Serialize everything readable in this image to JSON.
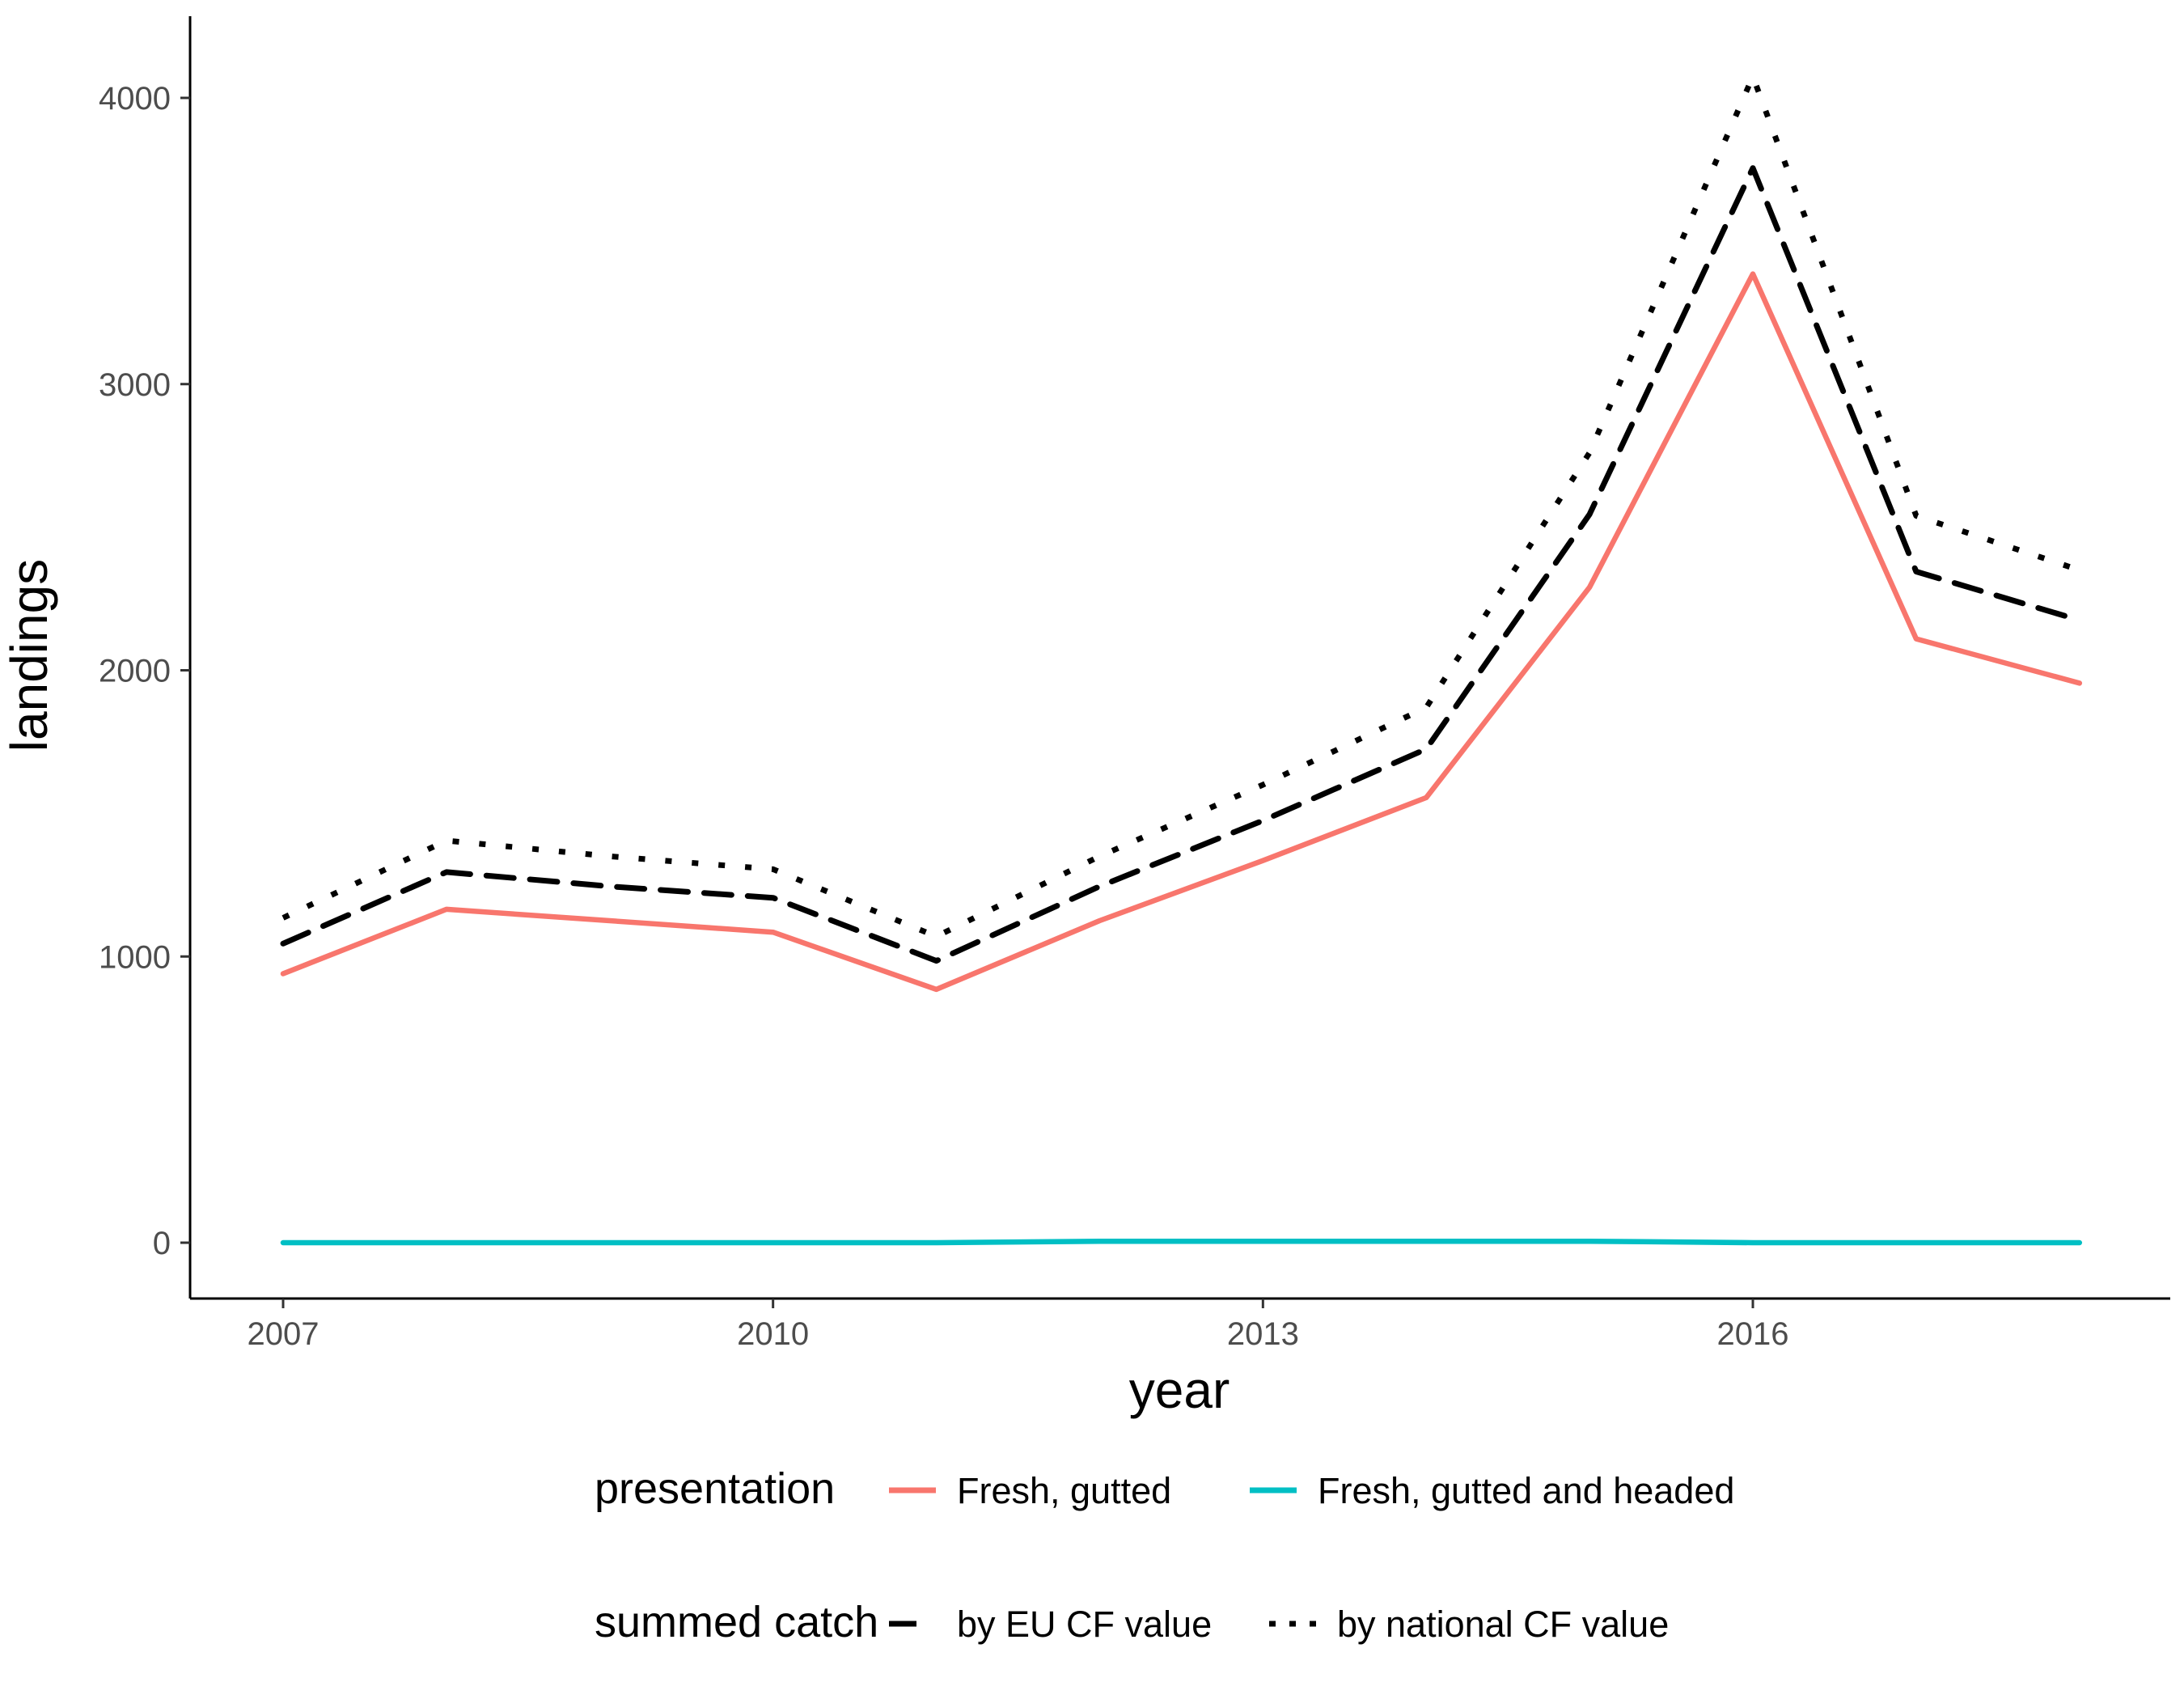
{
  "chart_data": {
    "type": "line",
    "xlabel": "year",
    "ylabel": "landings",
    "xlim": [
      2006.8,
      2018.3
    ],
    "ylim": [
      -200,
      4300
    ],
    "x_ticks": [
      2007,
      2010,
      2013,
      2016
    ],
    "y_ticks": [
      0,
      1000,
      2000,
      3000,
      4000
    ],
    "grid": false,
    "x": [
      2007,
      2008,
      2009,
      2010,
      2011,
      2012,
      2013,
      2014,
      2015,
      2016,
      2017,
      2018
    ],
    "series": [
      {
        "name": "Fresh, gutted",
        "group": "presentation",
        "color": "#F8766D",
        "style": "solid",
        "values": [
          940,
          1165,
          1125,
          1085,
          885,
          1125,
          1335,
          1555,
          2290,
          3385,
          2110,
          1955
        ]
      },
      {
        "name": "Fresh, gutted and headed",
        "group": "presentation",
        "color": "#00BFC4",
        "style": "solid",
        "values": [
          0,
          0,
          0,
          0,
          0,
          5,
          5,
          5,
          5,
          0,
          0,
          0
        ]
      },
      {
        "name": "by EU CF value",
        "group": "summed catch",
        "color": "#000000",
        "style": "dashed",
        "values": [
          1045,
          1295,
          1245,
          1205,
          985,
          1245,
          1475,
          1725,
          2545,
          3755,
          2345,
          2175
        ]
      },
      {
        "name": "by national CF value",
        "group": "summed catch",
        "color": "#000000",
        "style": "dotted",
        "values": [
          1135,
          1405,
          1350,
          1305,
          1070,
          1350,
          1600,
          1870,
          2760,
          4075,
          2540,
          2350
        ]
      }
    ],
    "legend": {
      "placement": "bottom",
      "groups": [
        {
          "title": "presentation",
          "items": [
            "Fresh, gutted",
            "Fresh, gutted and headed"
          ]
        },
        {
          "title": "summed catch",
          "items": [
            "by EU CF value",
            "by national CF value"
          ]
        }
      ]
    }
  }
}
